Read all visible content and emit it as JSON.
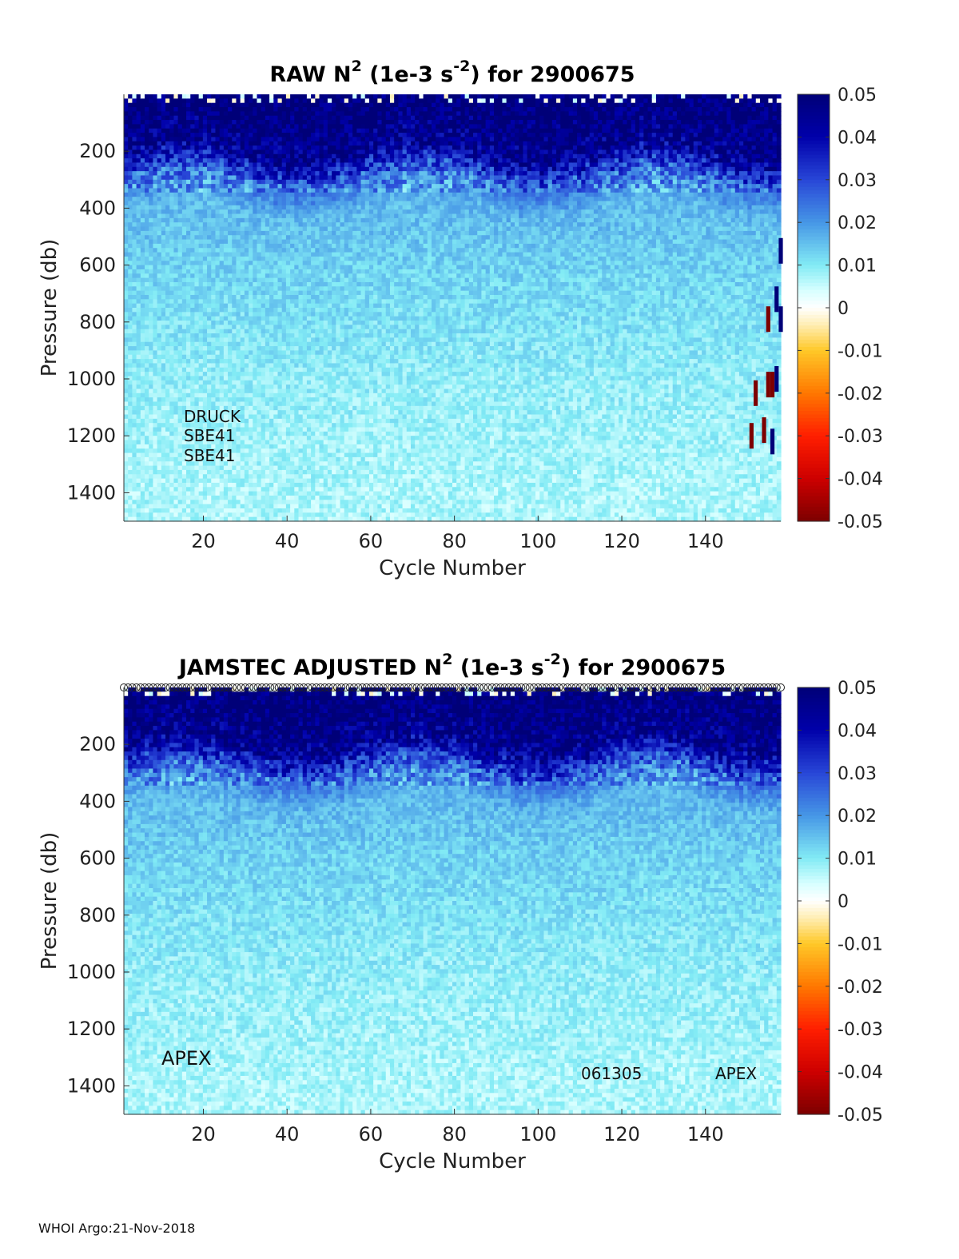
{
  "charts": [
    {
      "id": "raw",
      "title_prefix": "RAW N",
      "title_sup1": "2",
      "title_mid": " (1e-3 s",
      "title_sup2": "-2",
      "title_suffix": ") for 2900675",
      "annotations": [
        "DRUCK",
        "SBE41",
        "SBE41"
      ]
    },
    {
      "id": "adjusted",
      "title_prefix": "JAMSTEC  ADJUSTED N",
      "title_sup1": "2",
      "title_mid": " (1e-3 s",
      "title_sup2": "-2",
      "title_suffix": ") for 2900675",
      "annotations": [
        "APEX",
        "061305",
        "APEX"
      ]
    }
  ],
  "chart_data": [
    {
      "type": "heatmap",
      "title": "RAW N2 (1e-3 s-2) for 2900675",
      "xlabel": "Cycle Number",
      "ylabel": "Pressure (db)",
      "xlim": [
        1,
        158
      ],
      "ylim": [
        0,
        1500
      ],
      "y_reversed": true,
      "xticks": [
        20,
        40,
        60,
        80,
        100,
        120,
        140
      ],
      "yticks": [
        200,
        400,
        600,
        800,
        1000,
        1200,
        1400
      ],
      "colorbar": {
        "clim": [
          -0.05,
          0.05
        ],
        "ticks": [
          0.05,
          0.04,
          0.03,
          0.02,
          0.01,
          0,
          -0.01,
          -0.02,
          -0.03,
          -0.04,
          -0.05
        ],
        "colormap": "jet-like diverging, white at 0"
      },
      "profile": [
        {
          "pressure": 50,
          "value": 0.05
        },
        {
          "pressure": 200,
          "value": 0.045
        },
        {
          "pressure": 300,
          "value": 0.025
        },
        {
          "pressure": 400,
          "value": 0.016
        },
        {
          "pressure": 600,
          "value": 0.013
        },
        {
          "pressure": 800,
          "value": 0.011
        },
        {
          "pressure": 1000,
          "value": 0.009
        },
        {
          "pressure": 1200,
          "value": 0.008
        },
        {
          "pressure": 1400,
          "value": 0.007
        }
      ],
      "spikes": [
        {
          "cycle": 158,
          "pressure": 550,
          "value": 0.05
        },
        {
          "cycle": 157,
          "pressure": 720,
          "value": 0.05
        },
        {
          "cycle": 155,
          "pressure": 790,
          "value": -0.05
        },
        {
          "cycle": 158,
          "pressure": 790,
          "value": 0.05
        },
        {
          "cycle": 155,
          "pressure": 1020,
          "value": -0.05
        },
        {
          "cycle": 156,
          "pressure": 1020,
          "value": -0.05
        },
        {
          "cycle": 157,
          "pressure": 1000,
          "value": 0.05
        },
        {
          "cycle": 152,
          "pressure": 1050,
          "value": -0.05
        },
        {
          "cycle": 151,
          "pressure": 1200,
          "value": -0.05
        },
        {
          "cycle": 154,
          "pressure": 1180,
          "value": -0.05
        },
        {
          "cycle": 156,
          "pressure": 1220,
          "value": 0.05
        }
      ]
    },
    {
      "type": "heatmap",
      "title": "JAMSTEC  ADJUSTED N2 (1e-3 s-2) for 2900675",
      "xlabel": "Cycle Number",
      "ylabel": "Pressure (db)",
      "xlim": [
        1,
        158
      ],
      "ylim": [
        0,
        1500
      ],
      "y_reversed": true,
      "xticks": [
        20,
        40,
        60,
        80,
        100,
        120,
        140
      ],
      "yticks": [
        200,
        400,
        600,
        800,
        1000,
        1200,
        1400
      ],
      "colorbar": {
        "clim": [
          -0.05,
          0.05
        ],
        "ticks": [
          0.05,
          0.04,
          0.03,
          0.02,
          0.01,
          0,
          -0.01,
          -0.02,
          -0.03,
          -0.04,
          -0.05
        ],
        "colormap": "jet-like diverging, white at 0"
      },
      "profile": [
        {
          "pressure": 50,
          "value": 0.05
        },
        {
          "pressure": 200,
          "value": 0.045
        },
        {
          "pressure": 300,
          "value": 0.025
        },
        {
          "pressure": 400,
          "value": 0.016
        },
        {
          "pressure": 600,
          "value": 0.013
        },
        {
          "pressure": 800,
          "value": 0.011
        },
        {
          "pressure": 1000,
          "value": 0.009
        },
        {
          "pressure": 1200,
          "value": 0.008
        },
        {
          "pressure": 1400,
          "value": 0.007
        }
      ],
      "top_markers": "open circles along the top at every cycle",
      "spikes": []
    }
  ],
  "footer": "WHOI Argo:21-Nov-2018"
}
